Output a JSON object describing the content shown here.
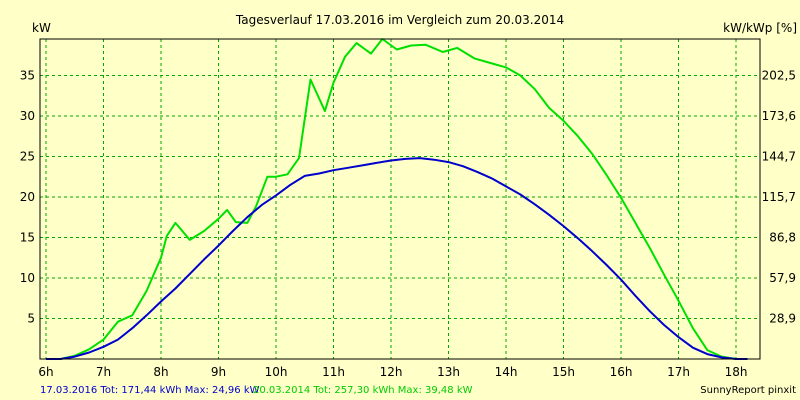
{
  "chart_data": {
    "type": "line",
    "title": "Tagesverlauf 17.03.2016 im Vergleich zum 20.03.2014",
    "ylabel_left": "kW",
    "ylabel_right": "kW/kWp [%]",
    "x_ticks": [
      {
        "h": 6,
        "label": "6h"
      },
      {
        "h": 7,
        "label": "7h"
      },
      {
        "h": 8,
        "label": "8h"
      },
      {
        "h": 9,
        "label": "9h"
      },
      {
        "h": 10,
        "label": "10h"
      },
      {
        "h": 11,
        "label": "11h"
      },
      {
        "h": 12,
        "label": "12h"
      },
      {
        "h": 13,
        "label": "13h"
      },
      {
        "h": 14,
        "label": "14h"
      },
      {
        "h": 15,
        "label": "15h"
      },
      {
        "h": 16,
        "label": "16h"
      },
      {
        "h": 17,
        "label": "17h"
      },
      {
        "h": 18,
        "label": "18h"
      }
    ],
    "xlim": [
      6,
      18.3
    ],
    "ylim": [
      0,
      39.5
    ],
    "y_ticks_left": [
      "5",
      "10",
      "15",
      "20",
      "25",
      "30",
      "35"
    ],
    "y_ticks_left_values": [
      5,
      10,
      15,
      20,
      25,
      30,
      35
    ],
    "y_ticks_right": [
      "28,9",
      "57,9",
      "86,8",
      "115,7",
      "144,7",
      "173,6",
      "202,5"
    ],
    "grid": true,
    "series": [
      {
        "name": "17.03.2016",
        "color": "#0000CC",
        "x": [
          6.0,
          6.25,
          6.5,
          6.75,
          7.0,
          7.25,
          7.5,
          7.75,
          8.0,
          8.25,
          8.5,
          8.75,
          9.0,
          9.25,
          9.5,
          9.75,
          10.0,
          10.25,
          10.5,
          10.75,
          11.0,
          11.25,
          11.5,
          11.75,
          12.0,
          12.25,
          12.5,
          12.75,
          13.0,
          13.25,
          13.5,
          13.75,
          14.0,
          14.25,
          14.5,
          14.75,
          15.0,
          15.25,
          15.5,
          15.75,
          16.0,
          16.25,
          16.5,
          16.75,
          17.0,
          17.25,
          17.5,
          17.75,
          18.0,
          18.2
        ],
        "y": [
          0.0,
          0.0,
          0.3,
          0.8,
          1.5,
          2.4,
          3.8,
          5.4,
          7.1,
          8.7,
          10.5,
          12.3,
          14.0,
          15.8,
          17.5,
          19.0,
          20.2,
          21.5,
          22.6,
          22.9,
          23.3,
          23.6,
          23.9,
          24.2,
          24.5,
          24.7,
          24.8,
          24.6,
          24.3,
          23.8,
          23.1,
          22.3,
          21.3,
          20.3,
          19.1,
          17.8,
          16.4,
          14.9,
          13.3,
          11.6,
          9.8,
          7.8,
          5.9,
          4.2,
          2.7,
          1.4,
          0.6,
          0.2,
          0.0,
          0.0
        ]
      },
      {
        "name": "20.03.2014",
        "color": "#00E000",
        "x": [
          6.0,
          6.25,
          6.5,
          6.75,
          7.0,
          7.25,
          7.5,
          7.75,
          8.0,
          8.1,
          8.25,
          8.5,
          8.75,
          9.0,
          9.15,
          9.3,
          9.5,
          9.65,
          9.85,
          10.0,
          10.2,
          10.4,
          10.6,
          10.85,
          11.0,
          11.2,
          11.4,
          11.65,
          11.85,
          12.1,
          12.35,
          12.6,
          12.9,
          13.15,
          13.45,
          13.7,
          14.0,
          14.25,
          14.5,
          14.75,
          15.0,
          15.25,
          15.5,
          15.75,
          16.0,
          16.25,
          16.5,
          16.75,
          17.0,
          17.25,
          17.5,
          17.75,
          18.0,
          18.2
        ],
        "y": [
          0.0,
          0.0,
          0.4,
          1.2,
          2.4,
          4.6,
          5.4,
          8.4,
          12.5,
          15.2,
          16.8,
          14.7,
          15.8,
          17.3,
          18.4,
          16.9,
          16.8,
          18.8,
          22.5,
          22.5,
          22.8,
          24.8,
          34.5,
          30.6,
          34.1,
          37.3,
          39.0,
          37.7,
          39.5,
          38.2,
          38.7,
          38.8,
          37.9,
          38.4,
          37.1,
          36.6,
          36.0,
          35.0,
          33.3,
          31.0,
          29.4,
          27.5,
          25.3,
          22.7,
          19.9,
          16.8,
          13.7,
          10.4,
          7.2,
          3.8,
          1.1,
          0.3,
          0.0,
          0.0
        ]
      }
    ],
    "footer_left": "17.03.2016 Tot: 171,44 kWh Max: 24,96 kW",
    "footer_middle": "20.03.2014 Tot: 257,30 kWh Max: 39,48 kW",
    "footer_right": "SunnyReport pinxit"
  },
  "colors": {
    "background": "#FFFFC8",
    "grid": "#00AA00",
    "frame": "#000000",
    "text": "#000000"
  }
}
